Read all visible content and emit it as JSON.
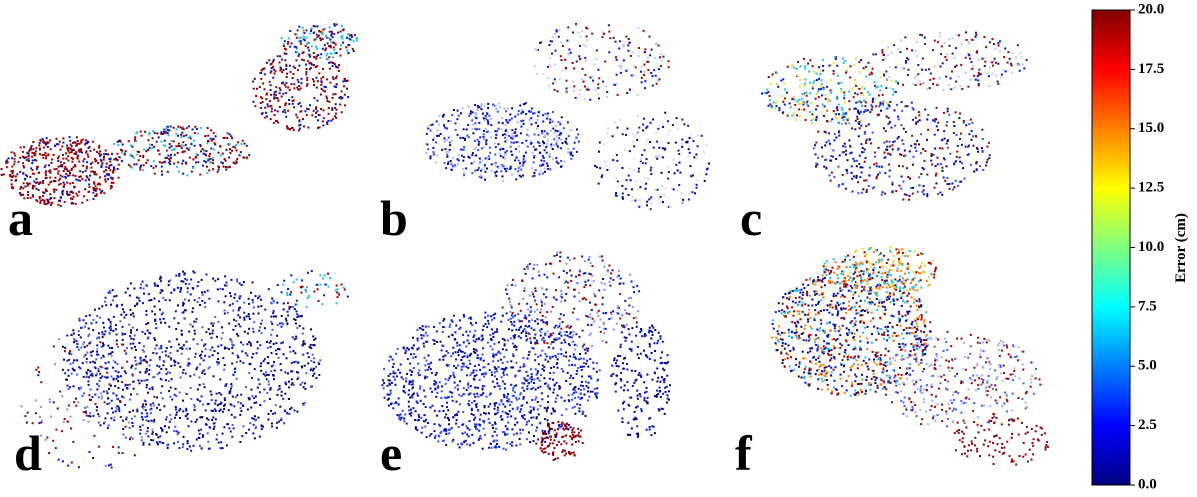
{
  "panels": [
    {
      "label": "a"
    },
    {
      "label": "b"
    },
    {
      "label": "c"
    },
    {
      "label": "d"
    },
    {
      "label": "e"
    },
    {
      "label": "f"
    }
  ],
  "colorbar": {
    "label": "Error (cm)",
    "lim": [
      0,
      20
    ],
    "ticks": [
      {
        "value": 0,
        "label": "0.0"
      },
      2.5,
      {
        "value": 5,
        "label": "5.0"
      },
      7.5,
      {
        "value": 10,
        "label": "10.0"
      },
      12.5,
      {
        "value": 15,
        "label": "15.0"
      },
      17.5,
      {
        "value": 20,
        "label": "20.0"
      }
    ]
  }
}
